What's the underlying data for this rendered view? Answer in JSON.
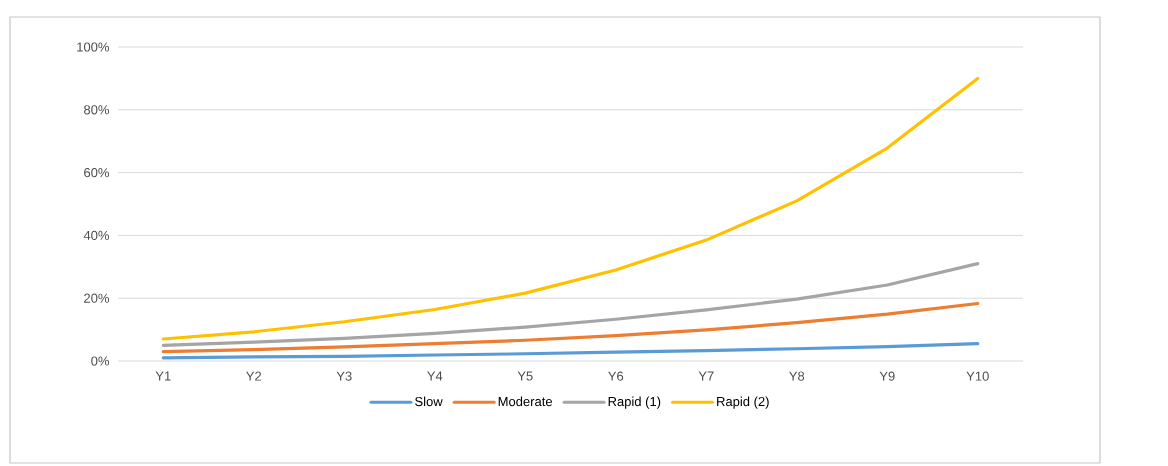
{
  "chart_data": {
    "type": "line",
    "categories": [
      "Y1",
      "Y2",
      "Y3",
      "Y4",
      "Y5",
      "Y6",
      "Y7",
      "Y8",
      "Y9",
      "Y10"
    ],
    "series": [
      {
        "name": "Slow",
        "color": "#5b9bd5",
        "values": [
          1,
          1.3,
          1.5,
          1.9,
          2.3,
          2.8,
          3.3,
          3.9,
          4.6,
          5.5
        ]
      },
      {
        "name": "Moderate",
        "color": "#ed7d31",
        "values": [
          3,
          3.6,
          4.5,
          5.5,
          6.6,
          8.1,
          9.9,
          12.2,
          14.9,
          18.3
        ]
      },
      {
        "name": "Rapid (1)",
        "color": "#a5a5a5",
        "values": [
          5,
          6,
          7.2,
          8.8,
          10.8,
          13.3,
          16.3,
          19.7,
          24.2,
          31
        ]
      },
      {
        "name": "Rapid (2)",
        "color": "#ffc000",
        "values": [
          7,
          9.3,
          12.5,
          16.4,
          21.6,
          29,
          38.5,
          51,
          67.8,
          90
        ]
      }
    ],
    "ylim": [
      0,
      100
    ],
    "yticks": [
      {
        "value": 0,
        "label": "0%"
      },
      {
        "value": 20,
        "label": "20%"
      },
      {
        "value": 40,
        "label": "40%"
      },
      {
        "value": 60,
        "label": "60%"
      },
      {
        "value": 80,
        "label": "80%"
      },
      {
        "value": 100,
        "label": "100%"
      }
    ],
    "grid": "y",
    "legend": "bottom",
    "marker": "none",
    "line_style": "solid"
  }
}
